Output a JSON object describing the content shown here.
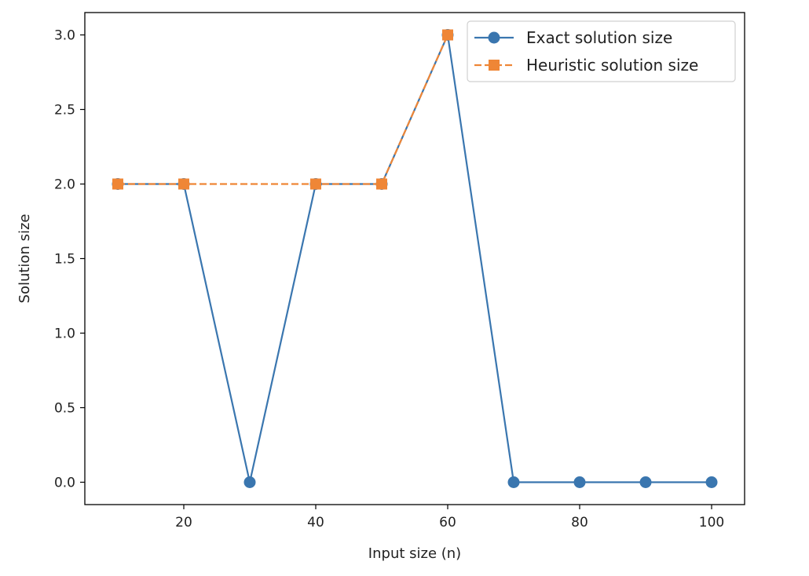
{
  "chart_data": {
    "type": "line",
    "title": "",
    "xlabel": "Input size (n)",
    "ylabel": "Solution size",
    "xlim": [
      5,
      105
    ],
    "ylim": [
      -0.15,
      3.15
    ],
    "xticks": [
      20,
      40,
      60,
      80,
      100
    ],
    "xtick_labels": [
      "20",
      "40",
      "60",
      "80",
      "100"
    ],
    "yticks": [
      0.0,
      0.5,
      1.0,
      1.5,
      2.0,
      2.5,
      3.0
    ],
    "ytick_labels": [
      "0.0",
      "0.5",
      "1.0",
      "1.5",
      "2.0",
      "2.5",
      "3.0"
    ],
    "grid": false,
    "legend_position": "top-right",
    "series": [
      {
        "name": "Exact solution size",
        "color": "#3a76af",
        "marker": "circle",
        "linestyle": "solid",
        "x": [
          10,
          20,
          30,
          40,
          50,
          60,
          70,
          80,
          90,
          100
        ],
        "values": [
          2,
          2,
          0,
          2,
          2,
          3,
          0,
          0,
          0,
          0
        ]
      },
      {
        "name": "Heuristic solution size",
        "color": "#ef8636",
        "marker": "square",
        "linestyle": "dashed",
        "x": [
          10,
          20,
          40,
          50,
          60
        ],
        "values": [
          2,
          2,
          2,
          2,
          3
        ]
      }
    ]
  }
}
